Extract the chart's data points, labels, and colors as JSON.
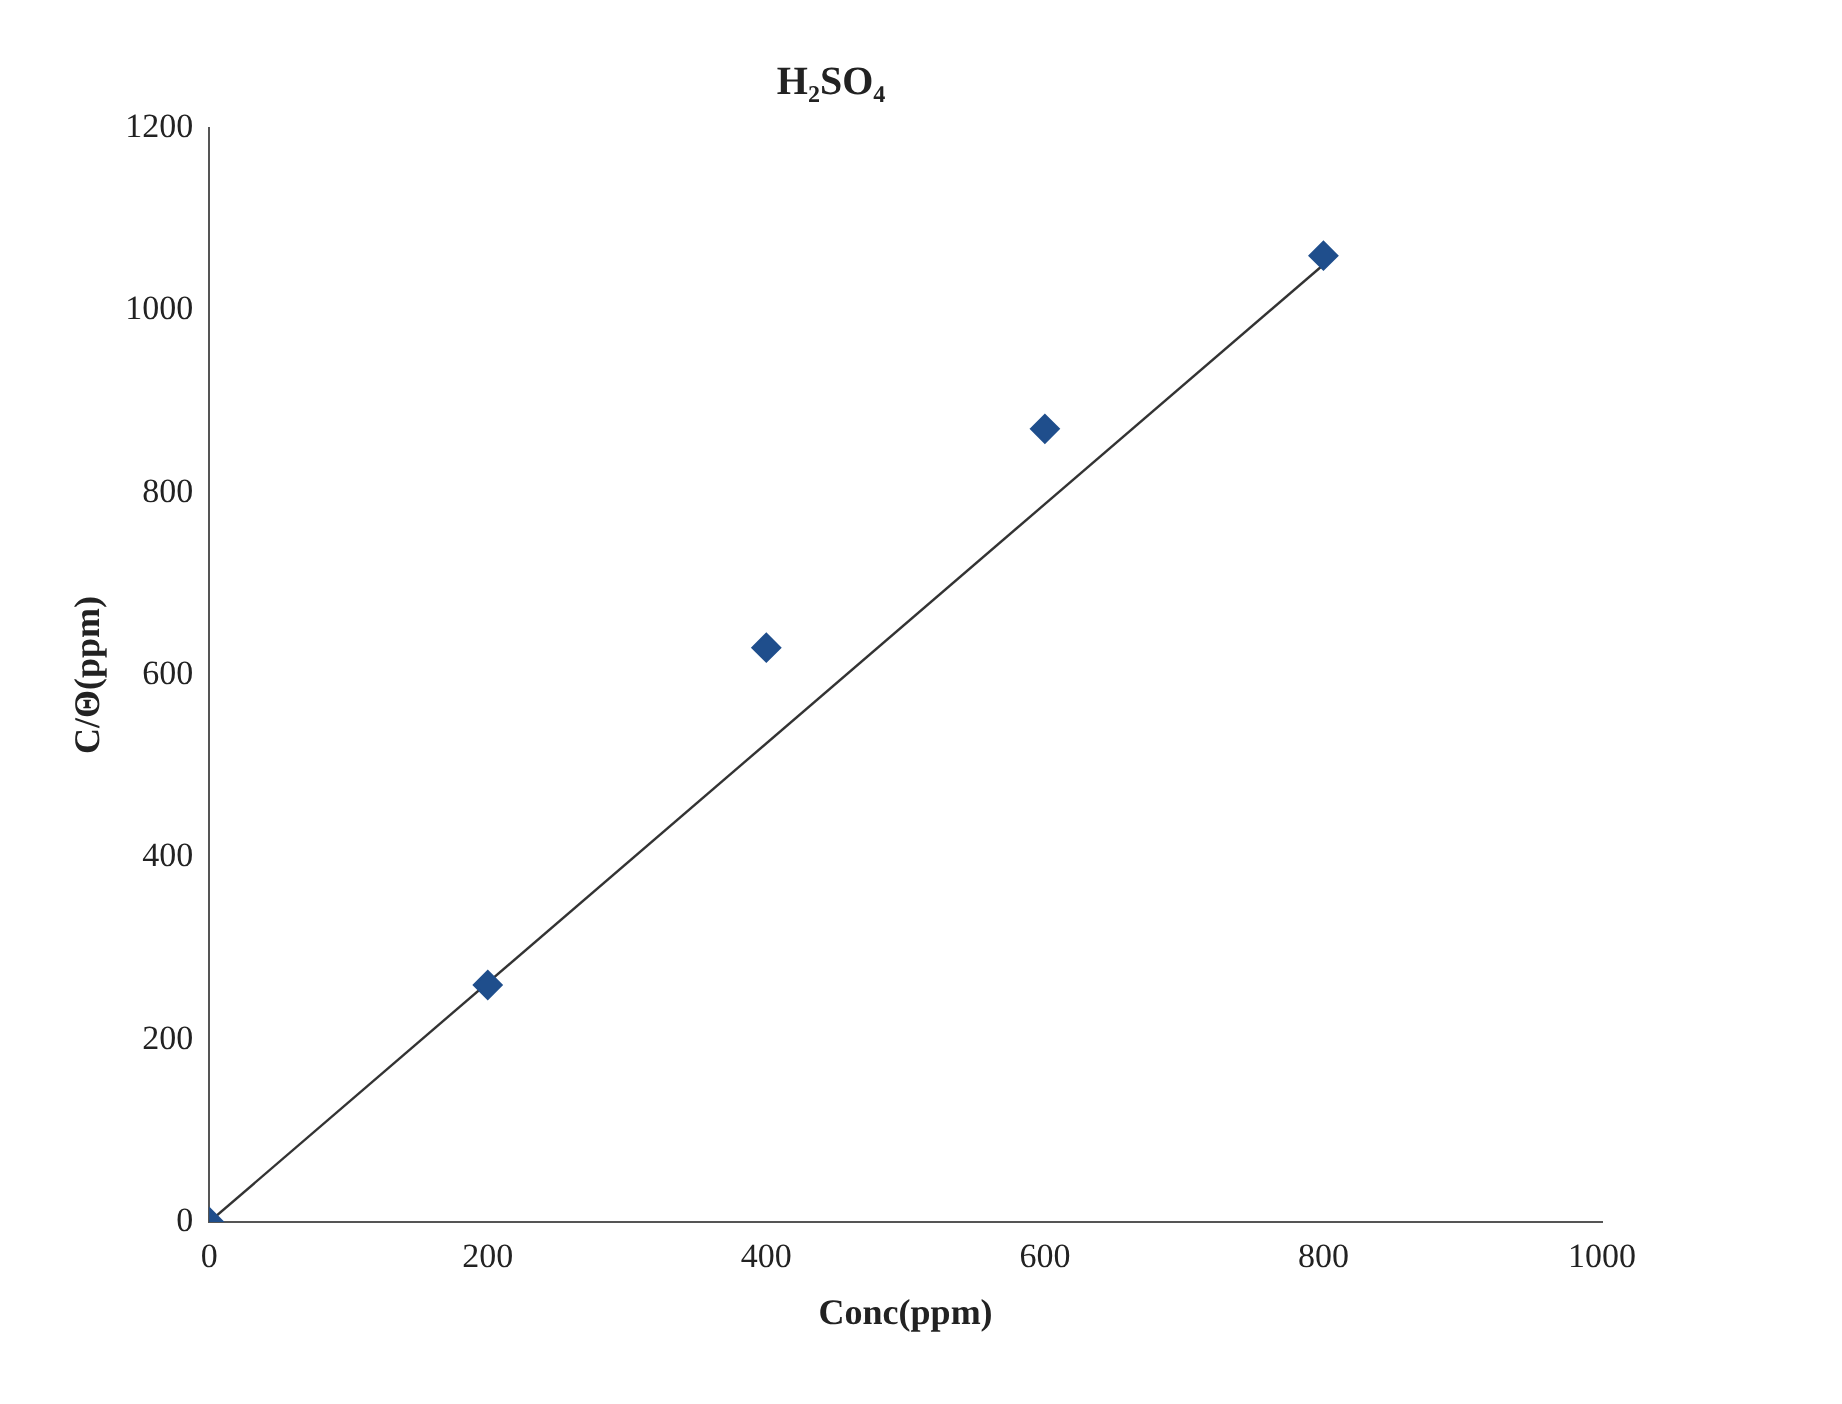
{
  "chart_data": {
    "type": "scatter",
    "title": "H₂SO₄",
    "xlabel": "Conc(ppm)",
    "ylabel": "C/Θ(ppm)",
    "series": [
      {
        "type": "scatter",
        "marker": "diamond",
        "color": "#1f4e8c",
        "x": [
          0,
          200,
          400,
          600,
          800
        ],
        "values": [
          0,
          260,
          630,
          870,
          1060
        ]
      },
      {
        "type": "line",
        "color": "#333333",
        "x": [
          0,
          800
        ],
        "values": [
          0,
          1050
        ]
      }
    ],
    "xlim": [
      0,
      1000
    ],
    "xticks": [
      0,
      200,
      400,
      600,
      800,
      1000
    ],
    "ylim": [
      0,
      1200
    ],
    "yticks": [
      0,
      200,
      400,
      600,
      800,
      1000,
      1200
    ],
    "grid": false,
    "legend": false,
    "line_style": "solid"
  }
}
